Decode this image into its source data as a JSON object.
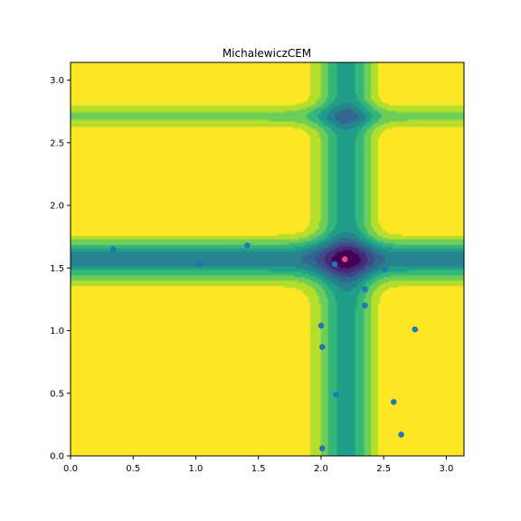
{
  "chart_data": {
    "type": "scatter",
    "title": "MichalewiczCEM",
    "xlabel": "",
    "ylabel": "",
    "xlim": [
      0,
      3.14159
    ],
    "ylim": [
      0,
      3.14159
    ],
    "xticks": [
      "0.0",
      "0.5",
      "1.0",
      "1.5",
      "2.0",
      "2.5",
      "3.0"
    ],
    "yticks": [
      "0.0",
      "0.5",
      "1.0",
      "1.5",
      "2.0",
      "2.5",
      "3.0"
    ],
    "background": {
      "kind": "filled-contour",
      "function": "Michalewicz (m=10)",
      "colormap": "viridis",
      "minimum": {
        "x": 2.2,
        "y": 1.57
      }
    },
    "series": [
      {
        "marker_color": "#1f77b4",
        "points": [
          {
            "x": 0.34,
            "y": 1.65
          },
          {
            "x": 1.03,
            "y": 1.53
          },
          {
            "x": 1.41,
            "y": 1.68
          },
          {
            "x": 2.11,
            "y": 1.53
          },
          {
            "x": 2.51,
            "y": 1.49
          },
          {
            "x": 2.35,
            "y": 1.33
          },
          {
            "x": 2.35,
            "y": 1.2
          },
          {
            "x": 2.0,
            "y": 1.04
          },
          {
            "x": 2.75,
            "y": 1.01
          },
          {
            "x": 2.01,
            "y": 0.87
          },
          {
            "x": 2.12,
            "y": 0.49
          },
          {
            "x": 2.58,
            "y": 0.43
          },
          {
            "x": 2.64,
            "y": 0.17
          },
          {
            "x": 2.01,
            "y": 0.06
          }
        ]
      }
    ],
    "highlight_point": {
      "x": 2.19,
      "y": 1.57,
      "color": "#d94a8c"
    }
  }
}
